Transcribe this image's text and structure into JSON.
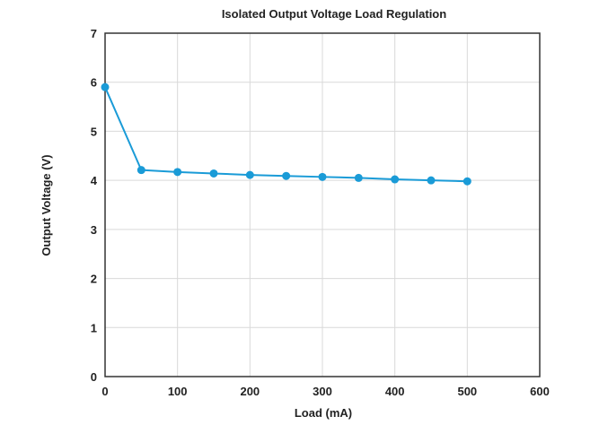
{
  "chart_data": {
    "type": "line",
    "title": "Isolated Output Voltage Load Regulation",
    "xlabel": "Load (mA)",
    "ylabel": "Output Voltage (V)",
    "xlim": [
      0,
      600
    ],
    "ylim": [
      0,
      7
    ],
    "xticks": [
      0,
      100,
      200,
      300,
      400,
      500,
      600
    ],
    "yticks": [
      0,
      1,
      2,
      3,
      4,
      5,
      6,
      7
    ],
    "grid": true,
    "series": [
      {
        "x": [
          0,
          50,
          100,
          150,
          200,
          250,
          300,
          350,
          400,
          450,
          500
        ],
        "y": [
          5.9,
          4.21,
          4.17,
          4.14,
          4.11,
          4.09,
          4.07,
          4.05,
          4.02,
          4.0,
          3.98
        ],
        "color": "#1a9bd7"
      }
    ]
  }
}
